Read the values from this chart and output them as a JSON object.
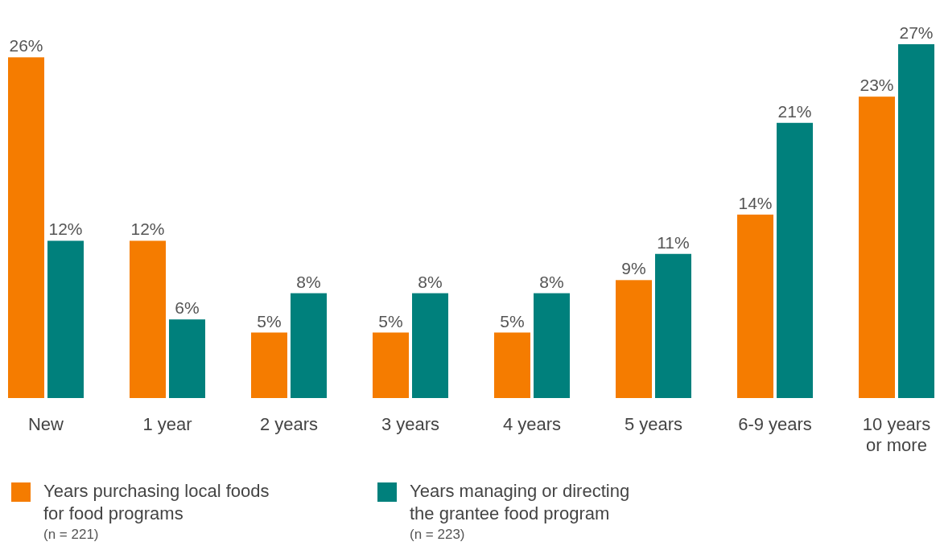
{
  "chart_data": {
    "type": "bar",
    "categories": [
      "New",
      "1 year",
      "2 years",
      "3 years",
      "4 years",
      "5 years",
      "6-9 years",
      "10 years or more"
    ],
    "series": [
      {
        "name": "Years purchasing local foods for food programs",
        "color": "#f57c00",
        "values": [
          26,
          12,
          5,
          5,
          5,
          9,
          14,
          23
        ],
        "value_labels": [
          "26%",
          "12%",
          "5%",
          "5%",
          "5%",
          "9%",
          "14%",
          "23%"
        ]
      },
      {
        "name": "Years managing or directing the grantee food program",
        "color": "#00807c",
        "values": [
          12,
          6,
          8,
          8,
          8,
          11,
          21,
          27
        ],
        "value_labels": [
          "12%",
          "6%",
          "8%",
          "8%",
          "8%",
          "11%",
          "21%",
          "27%"
        ]
      }
    ],
    "legend": "bottom",
    "annotations": [
      "(n = 221)",
      "(n = 223)"
    ]
  }
}
